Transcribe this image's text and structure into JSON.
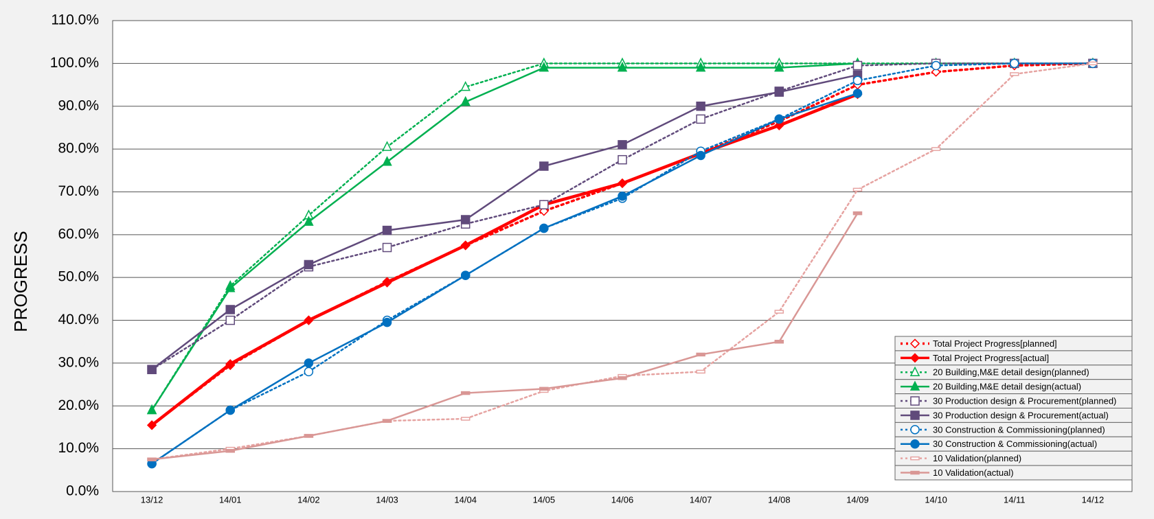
{
  "chart_data": {
    "type": "line",
    "y_label": "PROGRESS",
    "categories": [
      "13/12",
      "14/01",
      "14/02",
      "14/03",
      "14/04",
      "14/05",
      "14/06",
      "14/07",
      "14/08",
      "14/09",
      "14/10",
      "14/11",
      "14/12"
    ],
    "ylim": [
      0,
      110
    ],
    "yticks": [
      {
        "value": 0,
        "label": "0.0%"
      },
      {
        "value": 10,
        "label": "10.0%"
      },
      {
        "value": 20,
        "label": "20.0%"
      },
      {
        "value": 30,
        "label": "30.0%"
      },
      {
        "value": 40,
        "label": "40.0%"
      },
      {
        "value": 50,
        "label": "50.0%"
      },
      {
        "value": 60,
        "label": "60.0%"
      },
      {
        "value": 70,
        "label": "70.0%"
      },
      {
        "value": 80,
        "label": "80.0%"
      },
      {
        "value": 90,
        "label": "90.0%"
      },
      {
        "value": 100,
        "label": "100.0%"
      },
      {
        "value": 110,
        "label": "110.0%"
      }
    ],
    "grid": true,
    "legend": "lower right",
    "series": [
      {
        "name": "Total Project Progress[planned]",
        "color": "#ff0000",
        "line_style": "dotted",
        "line_width": 3.5,
        "marker": "diamond",
        "marker_filled": false,
        "values": [
          15.5,
          29.5,
          40,
          49,
          57.5,
          65.5,
          72,
          79,
          86.5,
          95,
          98,
          99.5,
          100
        ]
      },
      {
        "name": "Total Project Progress[actual]",
        "color": "#ff0000",
        "line_style": "solid",
        "line_width": 4.5,
        "marker": "diamond",
        "marker_filled": true,
        "values": [
          15.5,
          29.8,
          40,
          48.8,
          57.5,
          67,
          72,
          79,
          85.5,
          92.8,
          null,
          null,
          null
        ]
      },
      {
        "name": "20 Building,M&E detail design(planned)",
        "color": "#00b050",
        "line_style": "dotted",
        "line_width": 2.5,
        "marker": "triangle",
        "marker_filled": false,
        "values": [
          19,
          48,
          64.5,
          80.5,
          94.5,
          100,
          100,
          100,
          100,
          100,
          100,
          100,
          100
        ]
      },
      {
        "name": "20 Building,M&E detail design(actual)",
        "color": "#00b050",
        "line_style": "solid",
        "line_width": 2.5,
        "marker": "triangle",
        "marker_filled": true,
        "values": [
          19,
          47.5,
          63,
          77,
          91,
          99,
          99,
          99,
          99,
          100,
          null,
          null,
          null
        ]
      },
      {
        "name": "30 Production design & Procurement(planned)",
        "color": "#604a7b",
        "line_style": "dotted",
        "line_width": 2.5,
        "marker": "square",
        "marker_filled": false,
        "values": [
          28.5,
          40,
          52.5,
          57,
          62.5,
          67,
          77.5,
          87,
          93.5,
          99.5,
          100,
          100,
          100
        ]
      },
      {
        "name": "30 Production design & Procurement(actual)",
        "color": "#604a7b",
        "line_style": "solid",
        "line_width": 2.5,
        "marker": "square",
        "marker_filled": true,
        "values": [
          28.5,
          42.5,
          53,
          61,
          63.5,
          76,
          81,
          90,
          93.3,
          97.3,
          null,
          null,
          null
        ]
      },
      {
        "name": "30 Construction & Commissioning(planned)",
        "color": "#0070c0",
        "line_style": "dotted",
        "line_width": 2.5,
        "marker": "circle",
        "marker_filled": false,
        "values": [
          6.5,
          19,
          28,
          40,
          50.5,
          61.5,
          68.5,
          79.5,
          87,
          96,
          99.5,
          100,
          100
        ]
      },
      {
        "name": "30 Construction & Commissioning(actual)",
        "color": "#0070c0",
        "line_style": "solid",
        "line_width": 2.5,
        "marker": "circle",
        "marker_filled": true,
        "values": [
          6.5,
          19,
          30,
          39.5,
          50.5,
          61.5,
          69,
          78.5,
          87,
          93,
          null,
          null,
          null
        ]
      },
      {
        "name": "10 Validation(planned)",
        "color": "#e6a3a1",
        "line_style": "dotted",
        "line_width": 2.5,
        "marker": "dash",
        "marker_filled": false,
        "values": [
          7.5,
          10,
          13,
          16.5,
          17,
          23.5,
          27,
          28,
          42,
          70.5,
          80,
          97.5,
          100
        ]
      },
      {
        "name": "10 Validation(actual)",
        "color": "#d99795",
        "line_style": "solid",
        "line_width": 2.5,
        "marker": "dash",
        "marker_filled": true,
        "values": [
          7.5,
          9.5,
          13,
          16.5,
          23,
          24,
          26.5,
          32,
          35,
          65,
          null,
          null,
          null
        ]
      }
    ]
  }
}
